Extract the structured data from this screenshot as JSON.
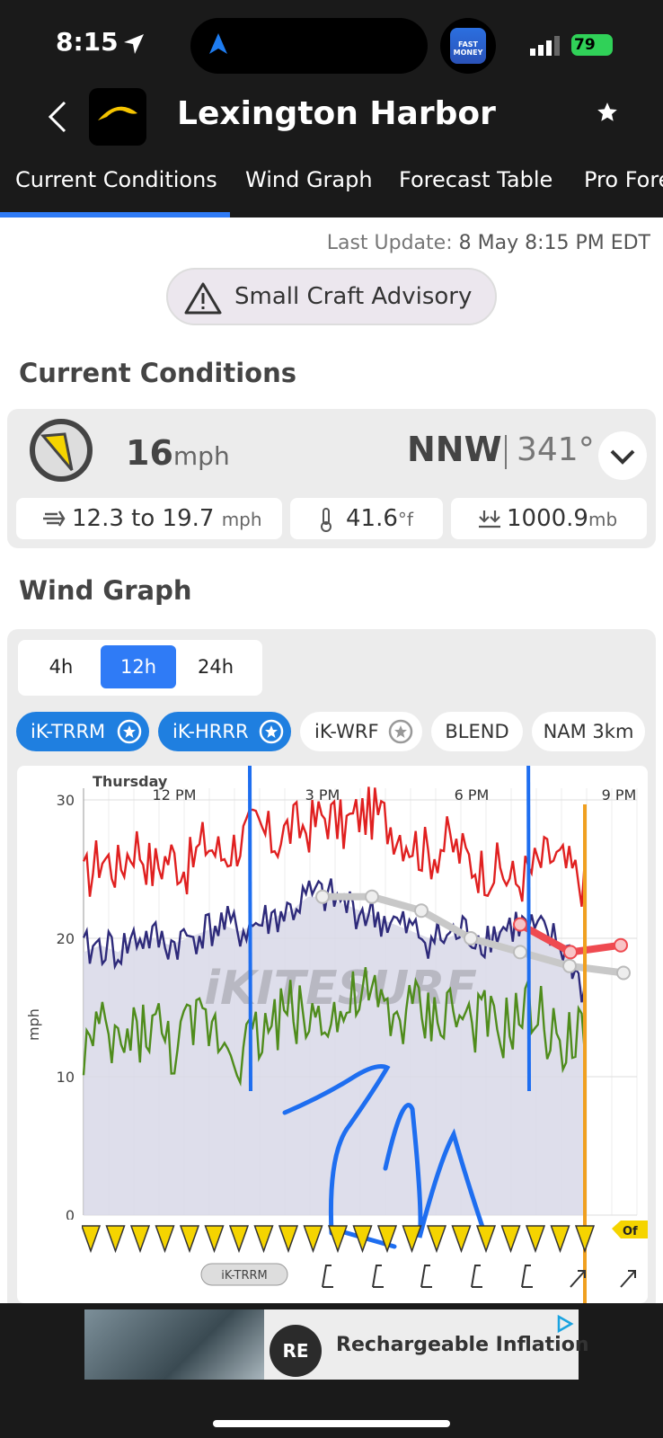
{
  "status_bar": {
    "time": "8:15",
    "battery": "79",
    "app_badge": "FAST MONEY"
  },
  "header": {
    "title": "Lexington Harbor"
  },
  "tabs": [
    {
      "label": "Current Conditions",
      "active": true
    },
    {
      "label": "Wind Graph"
    },
    {
      "label": "Forecast Table"
    },
    {
      "label": "Pro Fore"
    }
  ],
  "update": {
    "label": "Last Update:",
    "value": "8 May 8:15 PM EDT"
  },
  "advisory": {
    "label": "Small Craft Advisory"
  },
  "current_conditions": {
    "heading": "Current Conditions",
    "speed": "16",
    "speed_unit": "mph",
    "direction": "NNW",
    "degrees": "341°",
    "gust_range": "12.3 to 19.7",
    "gust_unit": "mph",
    "temperature": "41.6",
    "temp_unit": "°f",
    "pressure": "1000.9",
    "pressure_unit": "mb"
  },
  "wind_graph": {
    "heading": "Wind Graph",
    "ranges": [
      {
        "label": "4h"
      },
      {
        "label": "12h",
        "active": true
      },
      {
        "label": "24h"
      }
    ],
    "models": [
      {
        "label": "iK-TRRM",
        "active": true
      },
      {
        "label": "iK-HRRR",
        "active": true
      },
      {
        "label": "iK-WRF",
        "active": false
      },
      {
        "label": "BLEND",
        "active": false
      },
      {
        "label": "NAM 3km",
        "active": false
      }
    ],
    "watermark": "iKITESURF",
    "day_label": "Thursday",
    "bottom_tag": "iK-TRRM",
    "right_tag": "Of"
  },
  "chart_data": {
    "type": "line",
    "title": "",
    "xlabel": "",
    "ylabel": "mph",
    "x_ticks": [
      "12 PM",
      "3 PM",
      "6 PM",
      "9 PM"
    ],
    "y_ticks": [
      0,
      10,
      20,
      30
    ],
    "ylim": [
      0,
      33
    ],
    "series": [
      {
        "color": "#e02020",
        "values": [
          24,
          26,
          25,
          27,
          25,
          26,
          25,
          27,
          26,
          27,
          28,
          27,
          28,
          28,
          29,
          28,
          29,
          29,
          28,
          27,
          26,
          27,
          26,
          25,
          25,
          24,
          25,
          26,
          25,
          24
        ]
      },
      {
        "color": "#2e2a7a",
        "values": [
          19,
          19.5,
          19,
          20,
          20,
          19.5,
          20,
          20.5,
          21,
          20.5,
          21,
          21.5,
          22,
          23,
          23,
          22.5,
          22,
          21.5,
          21,
          20.5,
          20,
          20,
          20.5,
          20,
          20.5,
          21,
          20.5,
          20,
          19,
          16
        ]
      },
      {
        "color": "#4f8c1c",
        "values": [
          12,
          13,
          12,
          13,
          14,
          12,
          13,
          14,
          13,
          12,
          13,
          14,
          15,
          14,
          15,
          14,
          16,
          15,
          14,
          15,
          14,
          15,
          14,
          14,
          13,
          14,
          15,
          13,
          13,
          12.5
        ]
      },
      {
        "color": "#c8c8c8",
        "values": [
          23,
          23,
          22,
          20,
          19,
          18
        ]
      },
      {
        "color": "#ef4a50",
        "values": [
          21,
          19,
          19.5
        ]
      }
    ],
    "grid": true
  },
  "ad": {
    "text": "Rechargeable Inflation",
    "logo": "RE"
  }
}
